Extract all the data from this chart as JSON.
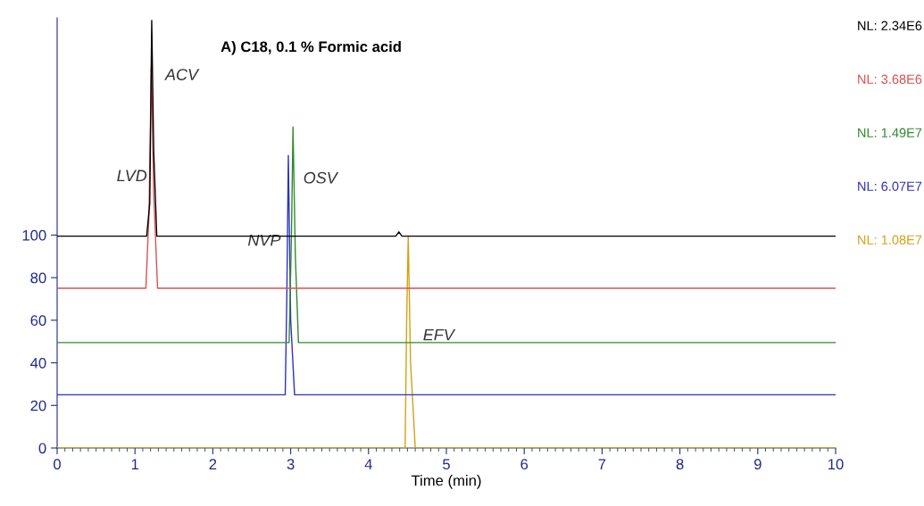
{
  "chart_data": {
    "type": "line",
    "title": "A) C18, 0.1 % Formic acid",
    "xlabel": "Time (min)",
    "xlim": [
      0,
      10
    ],
    "ylim": [
      0,
      202
    ],
    "xticks": [
      0,
      1,
      2,
      3,
      4,
      5,
      6,
      7,
      8,
      9,
      10
    ],
    "yticks": [
      0,
      20,
      40,
      60,
      80,
      100
    ],
    "grid": false,
    "legend": false,
    "marker": "none",
    "line_style": "solid",
    "series": [
      {
        "name": "NL: 2.34E6",
        "color": "#000000",
        "x": [
          0,
          1.15,
          1.19,
          1.215,
          1.24,
          1.28,
          4.35,
          4.39,
          4.43,
          10
        ],
        "values": [
          99.5,
          99.5,
          115,
          200.8,
          140,
          99.5,
          99.5,
          101.5,
          99.5,
          99.5
        ]
      },
      {
        "name": "NL: 3.68E6",
        "color": "#d9534f",
        "x": [
          0,
          1.14,
          1.18,
          1.21,
          1.24,
          1.29,
          10
        ],
        "values": [
          75,
          75,
          110,
          179.4,
          120,
          75,
          75
        ]
      },
      {
        "name": "NL: 1.49E7",
        "color": "#2e8b2e",
        "x": [
          0,
          2.98,
          3.01,
          3.03,
          3.06,
          3.1,
          10
        ],
        "values": [
          49.5,
          49.5,
          100,
          150.8,
          90,
          49.5,
          49.5
        ]
      },
      {
        "name": "NL: 6.07E7",
        "color": "#3030c0",
        "x": [
          0,
          2.93,
          2.95,
          2.97,
          3.0,
          3.05,
          10
        ],
        "values": [
          25,
          25,
          70,
          137.4,
          60,
          25,
          25
        ]
      },
      {
        "name": "NL: 1.08E7",
        "color": "#d4a017",
        "x": [
          0,
          4.47,
          4.49,
          4.51,
          4.54,
          4.6,
          10
        ],
        "values": [
          0,
          0,
          60,
          99.6,
          40,
          0,
          0
        ]
      }
    ],
    "annotations": [
      "LVD",
      "ACV",
      "OSV",
      "NVP",
      "EFV"
    ]
  }
}
